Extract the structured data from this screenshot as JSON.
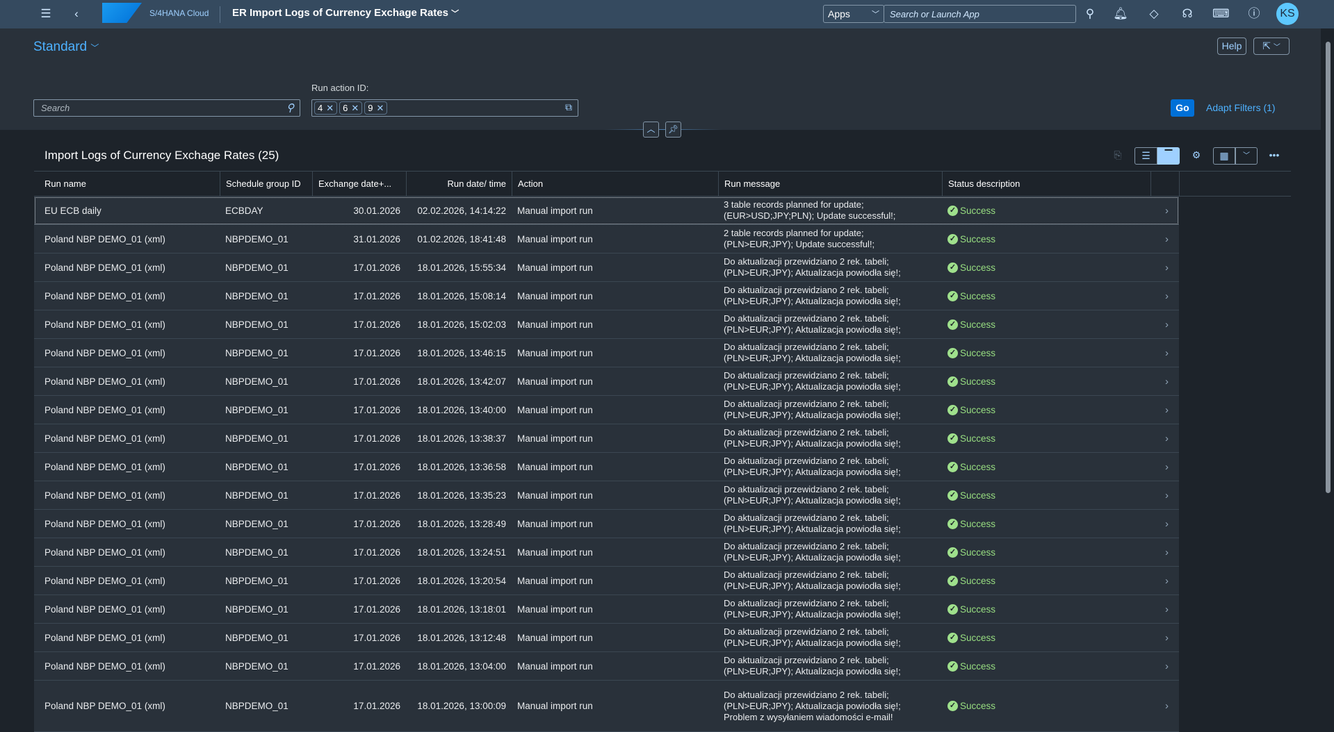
{
  "shell": {
    "product": "S/4HANA Cloud",
    "logo": "SAP",
    "app_title": "ER Import Logs of Currency Exchage Rates",
    "apps_label": "Apps",
    "search_placeholder": "Search or Launch App",
    "avatar": "KS"
  },
  "header": {
    "variant": "Standard",
    "help": "Help",
    "search_placeholder": "Search",
    "run_action_label": "Run action ID:",
    "tokens": [
      "4",
      "6",
      "9"
    ],
    "go": "Go",
    "adapt_filters": "Adapt Filters (1)"
  },
  "table": {
    "title": "Import Logs of Currency Exchage Rates (25)",
    "columns": [
      "Run name",
      "Schedule group ID",
      "Exchange date+...",
      "Run date/ time",
      "Action",
      "Run message",
      "Status description"
    ],
    "rows": [
      {
        "name": "EU ECB daily",
        "group": "ECBDAY",
        "exdate": "30.01.2026",
        "run": "02.02.2026, 14:14:22",
        "action": "Manual import run",
        "msg": [
          "3 table records planned for update;",
          "(EUR>USD;JPY;PLN); Update successful!;"
        ],
        "status": "Success"
      },
      {
        "name": "Poland NBP DEMO_01 (xml)",
        "group": "NBPDEMO_01",
        "exdate": "31.01.2026",
        "run": "01.02.2026, 18:41:48",
        "action": "Manual import run",
        "msg": [
          "2 table records planned for update;",
          "(PLN>EUR;JPY); Update successful!;"
        ],
        "status": "Success"
      },
      {
        "name": "Poland NBP DEMO_01 (xml)",
        "group": "NBPDEMO_01",
        "exdate": "17.01.2026",
        "run": "18.01.2026, 15:55:34",
        "action": "Manual import run",
        "msg": [
          "Do aktualizacji przewidziano 2 rek. tabeli;",
          "(PLN>EUR;JPY); Aktualizacja powiodła się!;"
        ],
        "status": "Success"
      },
      {
        "name": "Poland NBP DEMO_01 (xml)",
        "group": "NBPDEMO_01",
        "exdate": "17.01.2026",
        "run": "18.01.2026, 15:08:14",
        "action": "Manual import run",
        "msg": [
          "Do aktualizacji przewidziano 2 rek. tabeli;",
          "(PLN>EUR;JPY); Aktualizacja powiodła się!;"
        ],
        "status": "Success"
      },
      {
        "name": "Poland NBP DEMO_01 (xml)",
        "group": "NBPDEMO_01",
        "exdate": "17.01.2026",
        "run": "18.01.2026, 15:02:03",
        "action": "Manual import run",
        "msg": [
          "Do aktualizacji przewidziano 2 rek. tabeli;",
          "(PLN>EUR;JPY); Aktualizacja powiodła się!;"
        ],
        "status": "Success"
      },
      {
        "name": "Poland NBP DEMO_01 (xml)",
        "group": "NBPDEMO_01",
        "exdate": "17.01.2026",
        "run": "18.01.2026, 13:46:15",
        "action": "Manual import run",
        "msg": [
          "Do aktualizacji przewidziano 2 rek. tabeli;",
          "(PLN>EUR;JPY); Aktualizacja powiodła się!;"
        ],
        "status": "Success"
      },
      {
        "name": "Poland NBP DEMO_01 (xml)",
        "group": "NBPDEMO_01",
        "exdate": "17.01.2026",
        "run": "18.01.2026, 13:42:07",
        "action": "Manual import run",
        "msg": [
          "Do aktualizacji przewidziano 2 rek. tabeli;",
          "(PLN>EUR;JPY); Aktualizacja powiodła się!;"
        ],
        "status": "Success"
      },
      {
        "name": "Poland NBP DEMO_01 (xml)",
        "group": "NBPDEMO_01",
        "exdate": "17.01.2026",
        "run": "18.01.2026, 13:40:00",
        "action": "Manual import run",
        "msg": [
          "Do aktualizacji przewidziano 2 rek. tabeli;",
          "(PLN>EUR;JPY); Aktualizacja powiodła się!;"
        ],
        "status": "Success"
      },
      {
        "name": "Poland NBP DEMO_01 (xml)",
        "group": "NBPDEMO_01",
        "exdate": "17.01.2026",
        "run": "18.01.2026, 13:38:37",
        "action": "Manual import run",
        "msg": [
          "Do aktualizacji przewidziano 2 rek. tabeli;",
          "(PLN>EUR;JPY); Aktualizacja powiodła się!;"
        ],
        "status": "Success"
      },
      {
        "name": "Poland NBP DEMO_01 (xml)",
        "group": "NBPDEMO_01",
        "exdate": "17.01.2026",
        "run": "18.01.2026, 13:36:58",
        "action": "Manual import run",
        "msg": [
          "Do aktualizacji przewidziano 2 rek. tabeli;",
          "(PLN>EUR;JPY); Aktualizacja powiodła się!;"
        ],
        "status": "Success"
      },
      {
        "name": "Poland NBP DEMO_01 (xml)",
        "group": "NBPDEMO_01",
        "exdate": "17.01.2026",
        "run": "18.01.2026, 13:35:23",
        "action": "Manual import run",
        "msg": [
          "Do aktualizacji przewidziano 2 rek. tabeli;",
          "(PLN>EUR;JPY); Aktualizacja powiodła się!;"
        ],
        "status": "Success"
      },
      {
        "name": "Poland NBP DEMO_01 (xml)",
        "group": "NBPDEMO_01",
        "exdate": "17.01.2026",
        "run": "18.01.2026, 13:28:49",
        "action": "Manual import run",
        "msg": [
          "Do aktualizacji przewidziano 2 rek. tabeli;",
          "(PLN>EUR;JPY); Aktualizacja powiodła się!;"
        ],
        "status": "Success"
      },
      {
        "name": "Poland NBP DEMO_01 (xml)",
        "group": "NBPDEMO_01",
        "exdate": "17.01.2026",
        "run": "18.01.2026, 13:24:51",
        "action": "Manual import run",
        "msg": [
          "Do aktualizacji przewidziano 2 rek. tabeli;",
          "(PLN>EUR;JPY); Aktualizacja powiodła się!;"
        ],
        "status": "Success"
      },
      {
        "name": "Poland NBP DEMO_01 (xml)",
        "group": "NBPDEMO_01",
        "exdate": "17.01.2026",
        "run": "18.01.2026, 13:20:54",
        "action": "Manual import run",
        "msg": [
          "Do aktualizacji przewidziano 2 rek. tabeli;",
          "(PLN>EUR;JPY); Aktualizacja powiodła się!;"
        ],
        "status": "Success"
      },
      {
        "name": "Poland NBP DEMO_01 (xml)",
        "group": "NBPDEMO_01",
        "exdate": "17.01.2026",
        "run": "18.01.2026, 13:18:01",
        "action": "Manual import run",
        "msg": [
          "Do aktualizacji przewidziano 2 rek. tabeli;",
          "(PLN>EUR;JPY); Aktualizacja powiodła się!;"
        ],
        "status": "Success"
      },
      {
        "name": "Poland NBP DEMO_01 (xml)",
        "group": "NBPDEMO_01",
        "exdate": "17.01.2026",
        "run": "18.01.2026, 13:12:48",
        "action": "Manual import run",
        "msg": [
          "Do aktualizacji przewidziano 2 rek. tabeli;",
          "(PLN>EUR;JPY); Aktualizacja powiodła się!;"
        ],
        "status": "Success"
      },
      {
        "name": "Poland NBP DEMO_01 (xml)",
        "group": "NBPDEMO_01",
        "exdate": "17.01.2026",
        "run": "18.01.2026, 13:04:00",
        "action": "Manual import run",
        "msg": [
          "Do aktualizacji przewidziano 2 rek. tabeli;",
          "(PLN>EUR;JPY); Aktualizacja powiodła się!;"
        ],
        "status": "Success"
      },
      {
        "name": "Poland NBP DEMO_01 (xml)",
        "group": "NBPDEMO_01",
        "exdate": "17.01.2026",
        "run": "18.01.2026, 13:00:09",
        "action": "Manual import run",
        "msg": [
          "Do aktualizacji przewidziano 2 rek. tabeli;",
          "(PLN>EUR;JPY); Aktualizacja powiodła się!;",
          "Problem z wysyłaniem wiadomości e-mail!"
        ],
        "status": "Success"
      }
    ]
  },
  "colors": {
    "shell": "#354a5f",
    "accent": "#4db1ff",
    "go": "#0070d8",
    "success": "#97dd80",
    "avatar": "#5dc8ff"
  }
}
